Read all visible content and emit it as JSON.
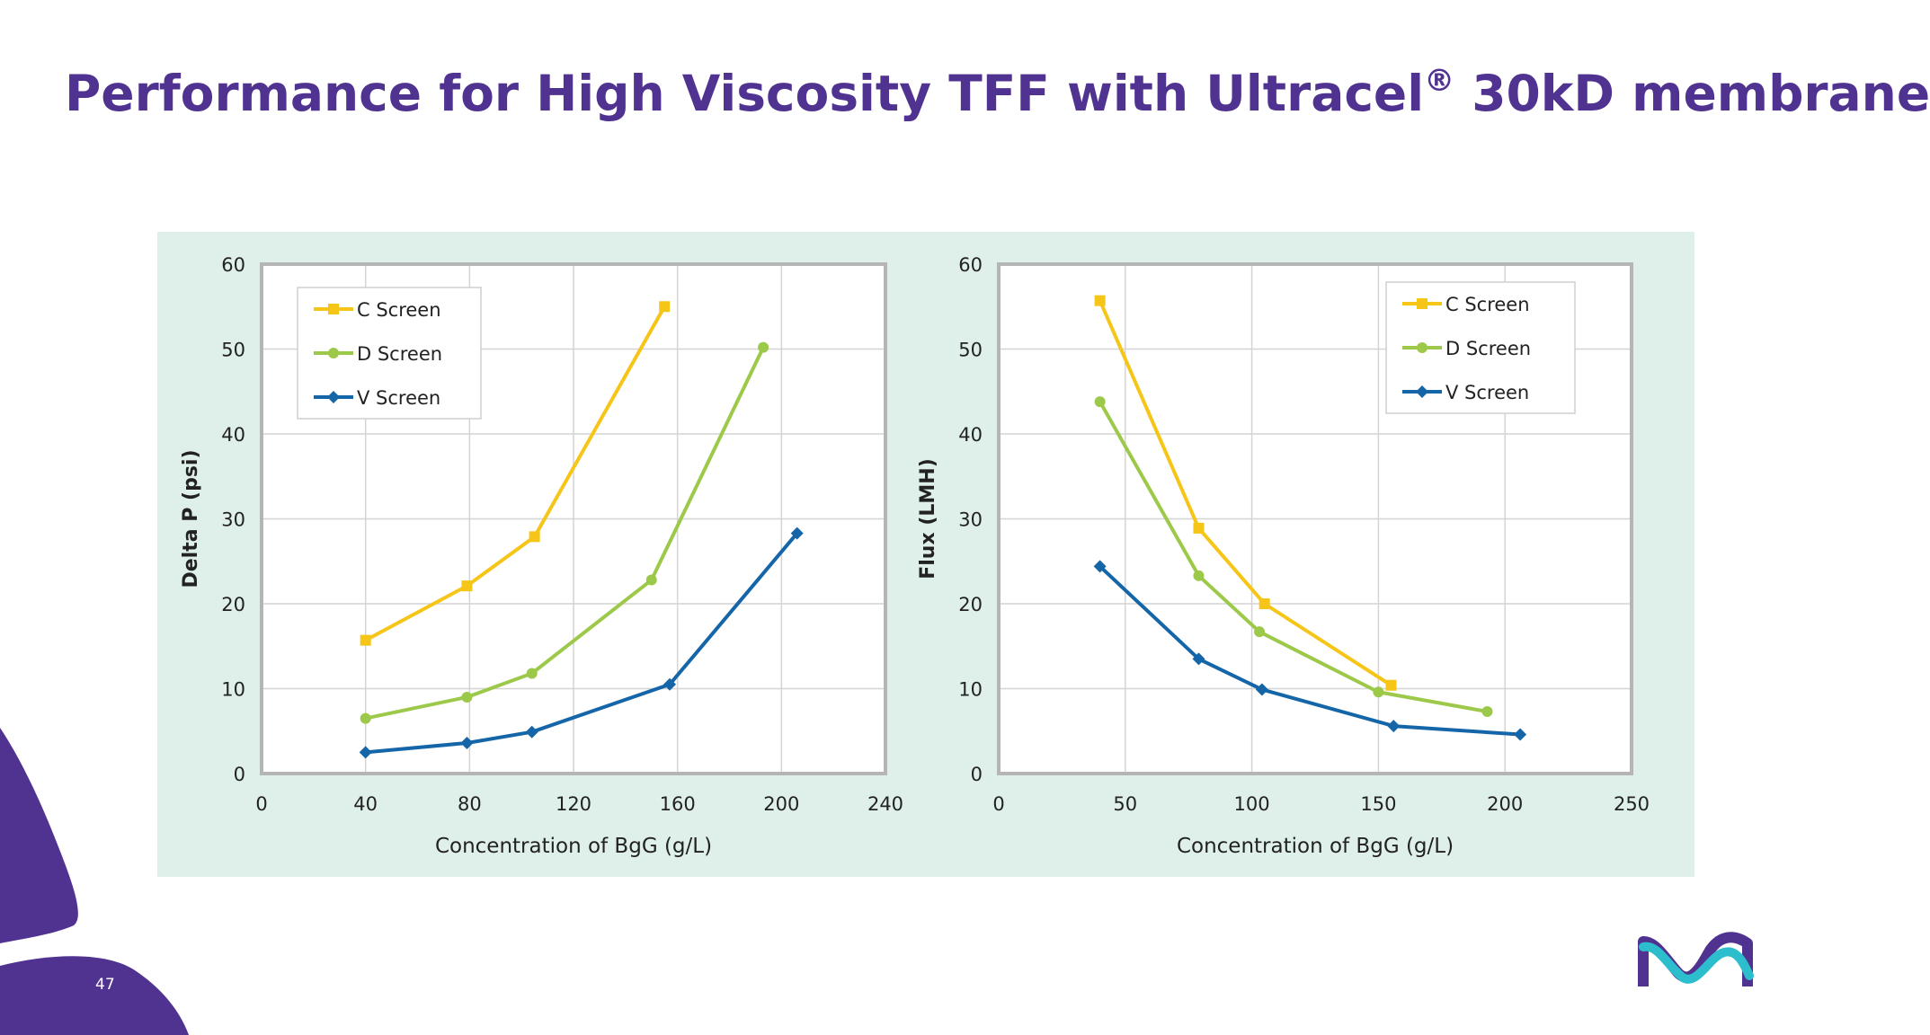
{
  "slide": {
    "title_main": "Performance for High Viscosity TFF with Ultracel",
    "title_reg": "®",
    "title_tail": " 30kD membrane",
    "page_number": "47"
  },
  "colors": {
    "title": "#503291",
    "panel": "#dff0ea",
    "c_screen": "#f5c518",
    "d_screen": "#9dc94a",
    "v_screen": "#1566a8",
    "decor": "#503291"
  },
  "chart_data": [
    {
      "type": "line",
      "xlabel": "Concentration of BgG (g/L)",
      "ylabel": "Delta P (psi)",
      "xlim": [
        0,
        240
      ],
      "ylim": [
        0,
        60
      ],
      "xticks": [
        0,
        40,
        80,
        120,
        160,
        200,
        240
      ],
      "yticks": [
        0,
        10,
        20,
        30,
        40,
        50,
        60
      ],
      "legend": "top-left",
      "series": [
        {
          "name": "C Screen",
          "marker": "square",
          "x": [
            40,
            79,
            105,
            155
          ],
          "y": [
            15.7,
            22.1,
            27.9,
            55.0
          ]
        },
        {
          "name": "D Screen",
          "marker": "circle",
          "x": [
            40,
            79,
            104,
            150,
            193
          ],
          "y": [
            6.5,
            9.0,
            11.8,
            22.8,
            50.2
          ]
        },
        {
          "name": "V Screen",
          "marker": "diamond",
          "x": [
            40,
            79,
            104,
            157,
            206
          ],
          "y": [
            2.5,
            3.6,
            4.9,
            10.5,
            28.3
          ]
        }
      ]
    },
    {
      "type": "line",
      "xlabel": "Concentration of BgG (g/L)",
      "ylabel": "Flux (LMH)",
      "xlim": [
        0,
        250
      ],
      "ylim": [
        0,
        60
      ],
      "xticks": [
        0,
        50,
        100,
        150,
        200,
        250
      ],
      "yticks": [
        0,
        10,
        20,
        30,
        40,
        50,
        60
      ],
      "legend": "top-right",
      "series": [
        {
          "name": "C Screen",
          "marker": "square",
          "x": [
            40,
            79,
            105,
            155
          ],
          "y": [
            55.7,
            28.9,
            20.0,
            10.4
          ]
        },
        {
          "name": "D Screen",
          "marker": "circle",
          "x": [
            40,
            79,
            103,
            150,
            193
          ],
          "y": [
            43.8,
            23.3,
            16.7,
            9.6,
            7.3
          ]
        },
        {
          "name": "V Screen",
          "marker": "diamond",
          "x": [
            40,
            79,
            104,
            156,
            206
          ],
          "y": [
            24.4,
            13.5,
            9.9,
            5.6,
            4.6
          ]
        }
      ]
    }
  ]
}
